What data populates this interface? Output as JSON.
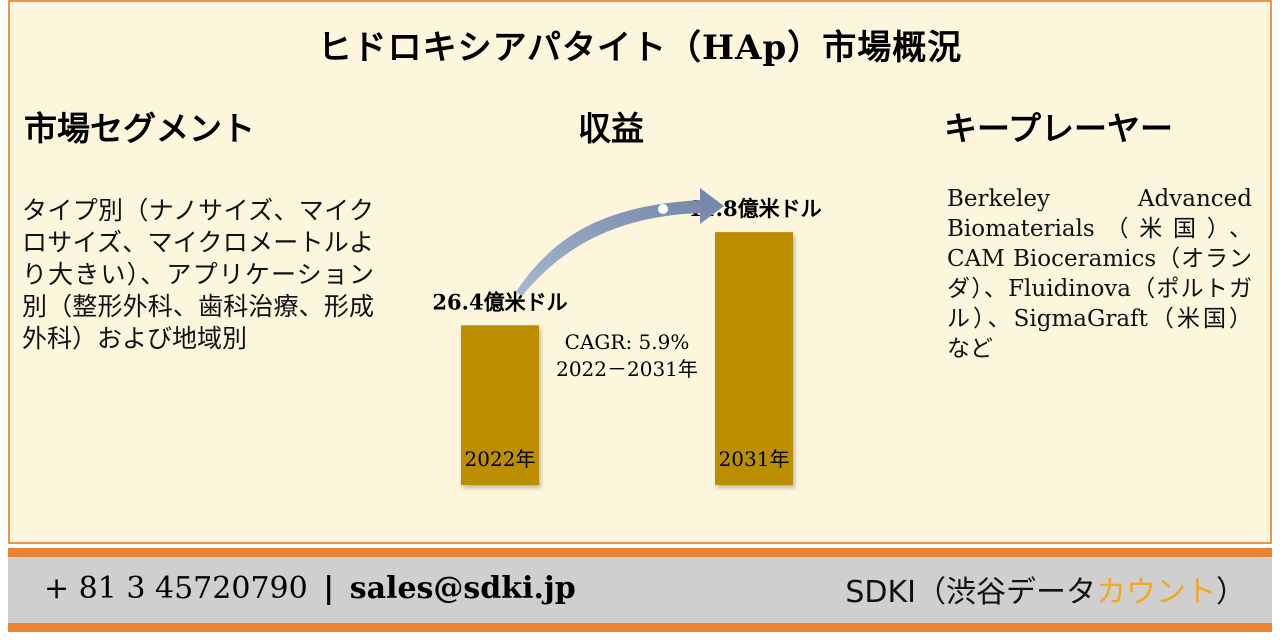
{
  "title": "ヒドロキシアパタイト（HAp）市場概況",
  "segments": {
    "heading": "市場セグメント",
    "text": "タイプ別（ナノサイズ、マイクロサイズ、マイクロメートルより大きい）、アプリケーション別（整形外科、歯科治療、形成外科）および地域別"
  },
  "revenue": {
    "heading": "収益"
  },
  "players": {
    "heading": "キープレーヤー",
    "text": "Berkeley Advanced Biomaterials（米国）、CAM Bioceramics（オランダ）、Fluidinova（ポルトガル）、SigmaGraft（米国）など"
  },
  "chart_data": {
    "type": "bar",
    "categories": [
      "2022年",
      "2031年"
    ],
    "values": [
      26.4,
      41.8
    ],
    "value_labels": [
      "26.4億米ドル",
      "41.8億米ドル"
    ],
    "unit": "億米ドル",
    "cagr_label": "CAGR: 5.9%",
    "cagr_period": "2022－2031年",
    "bar_color": "#bb8e03",
    "arrow_color": "#7f93b5"
  },
  "footer": {
    "phone": "+ 81 3 45720790",
    "separator": "|",
    "email": "sales@sdki.jp",
    "brand_main": "SDKI（渋谷データ",
    "brand_accent": "カウント",
    "brand_end": "）",
    "bar_color": "#ea8432",
    "accent_color": "#f5a623"
  }
}
